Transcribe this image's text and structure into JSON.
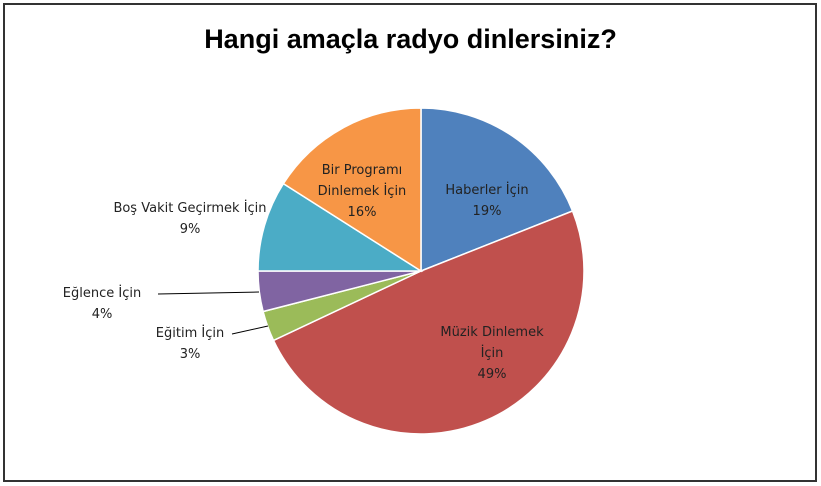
{
  "chart_data": {
    "type": "pie",
    "title": "Hangi amaçla radyo dinlersiniz?",
    "categories": [
      "Haberler İçin",
      "Müzik Dinlemek İçin",
      "Eğitim İçin",
      "Eğlence İçin",
      "Boş Vakit Geçirmek İçin",
      "Bir Programı Dinlemek İçin"
    ],
    "values": [
      19,
      49,
      3,
      4,
      9,
      16
    ],
    "value_labels": [
      "19%",
      "49%",
      "3%",
      "4%",
      "9%",
      "16%"
    ],
    "colors": [
      "#4f81bd",
      "#c0504d",
      "#9bbb59",
      "#8064a2",
      "#4bacc6",
      "#f79646"
    ]
  }
}
